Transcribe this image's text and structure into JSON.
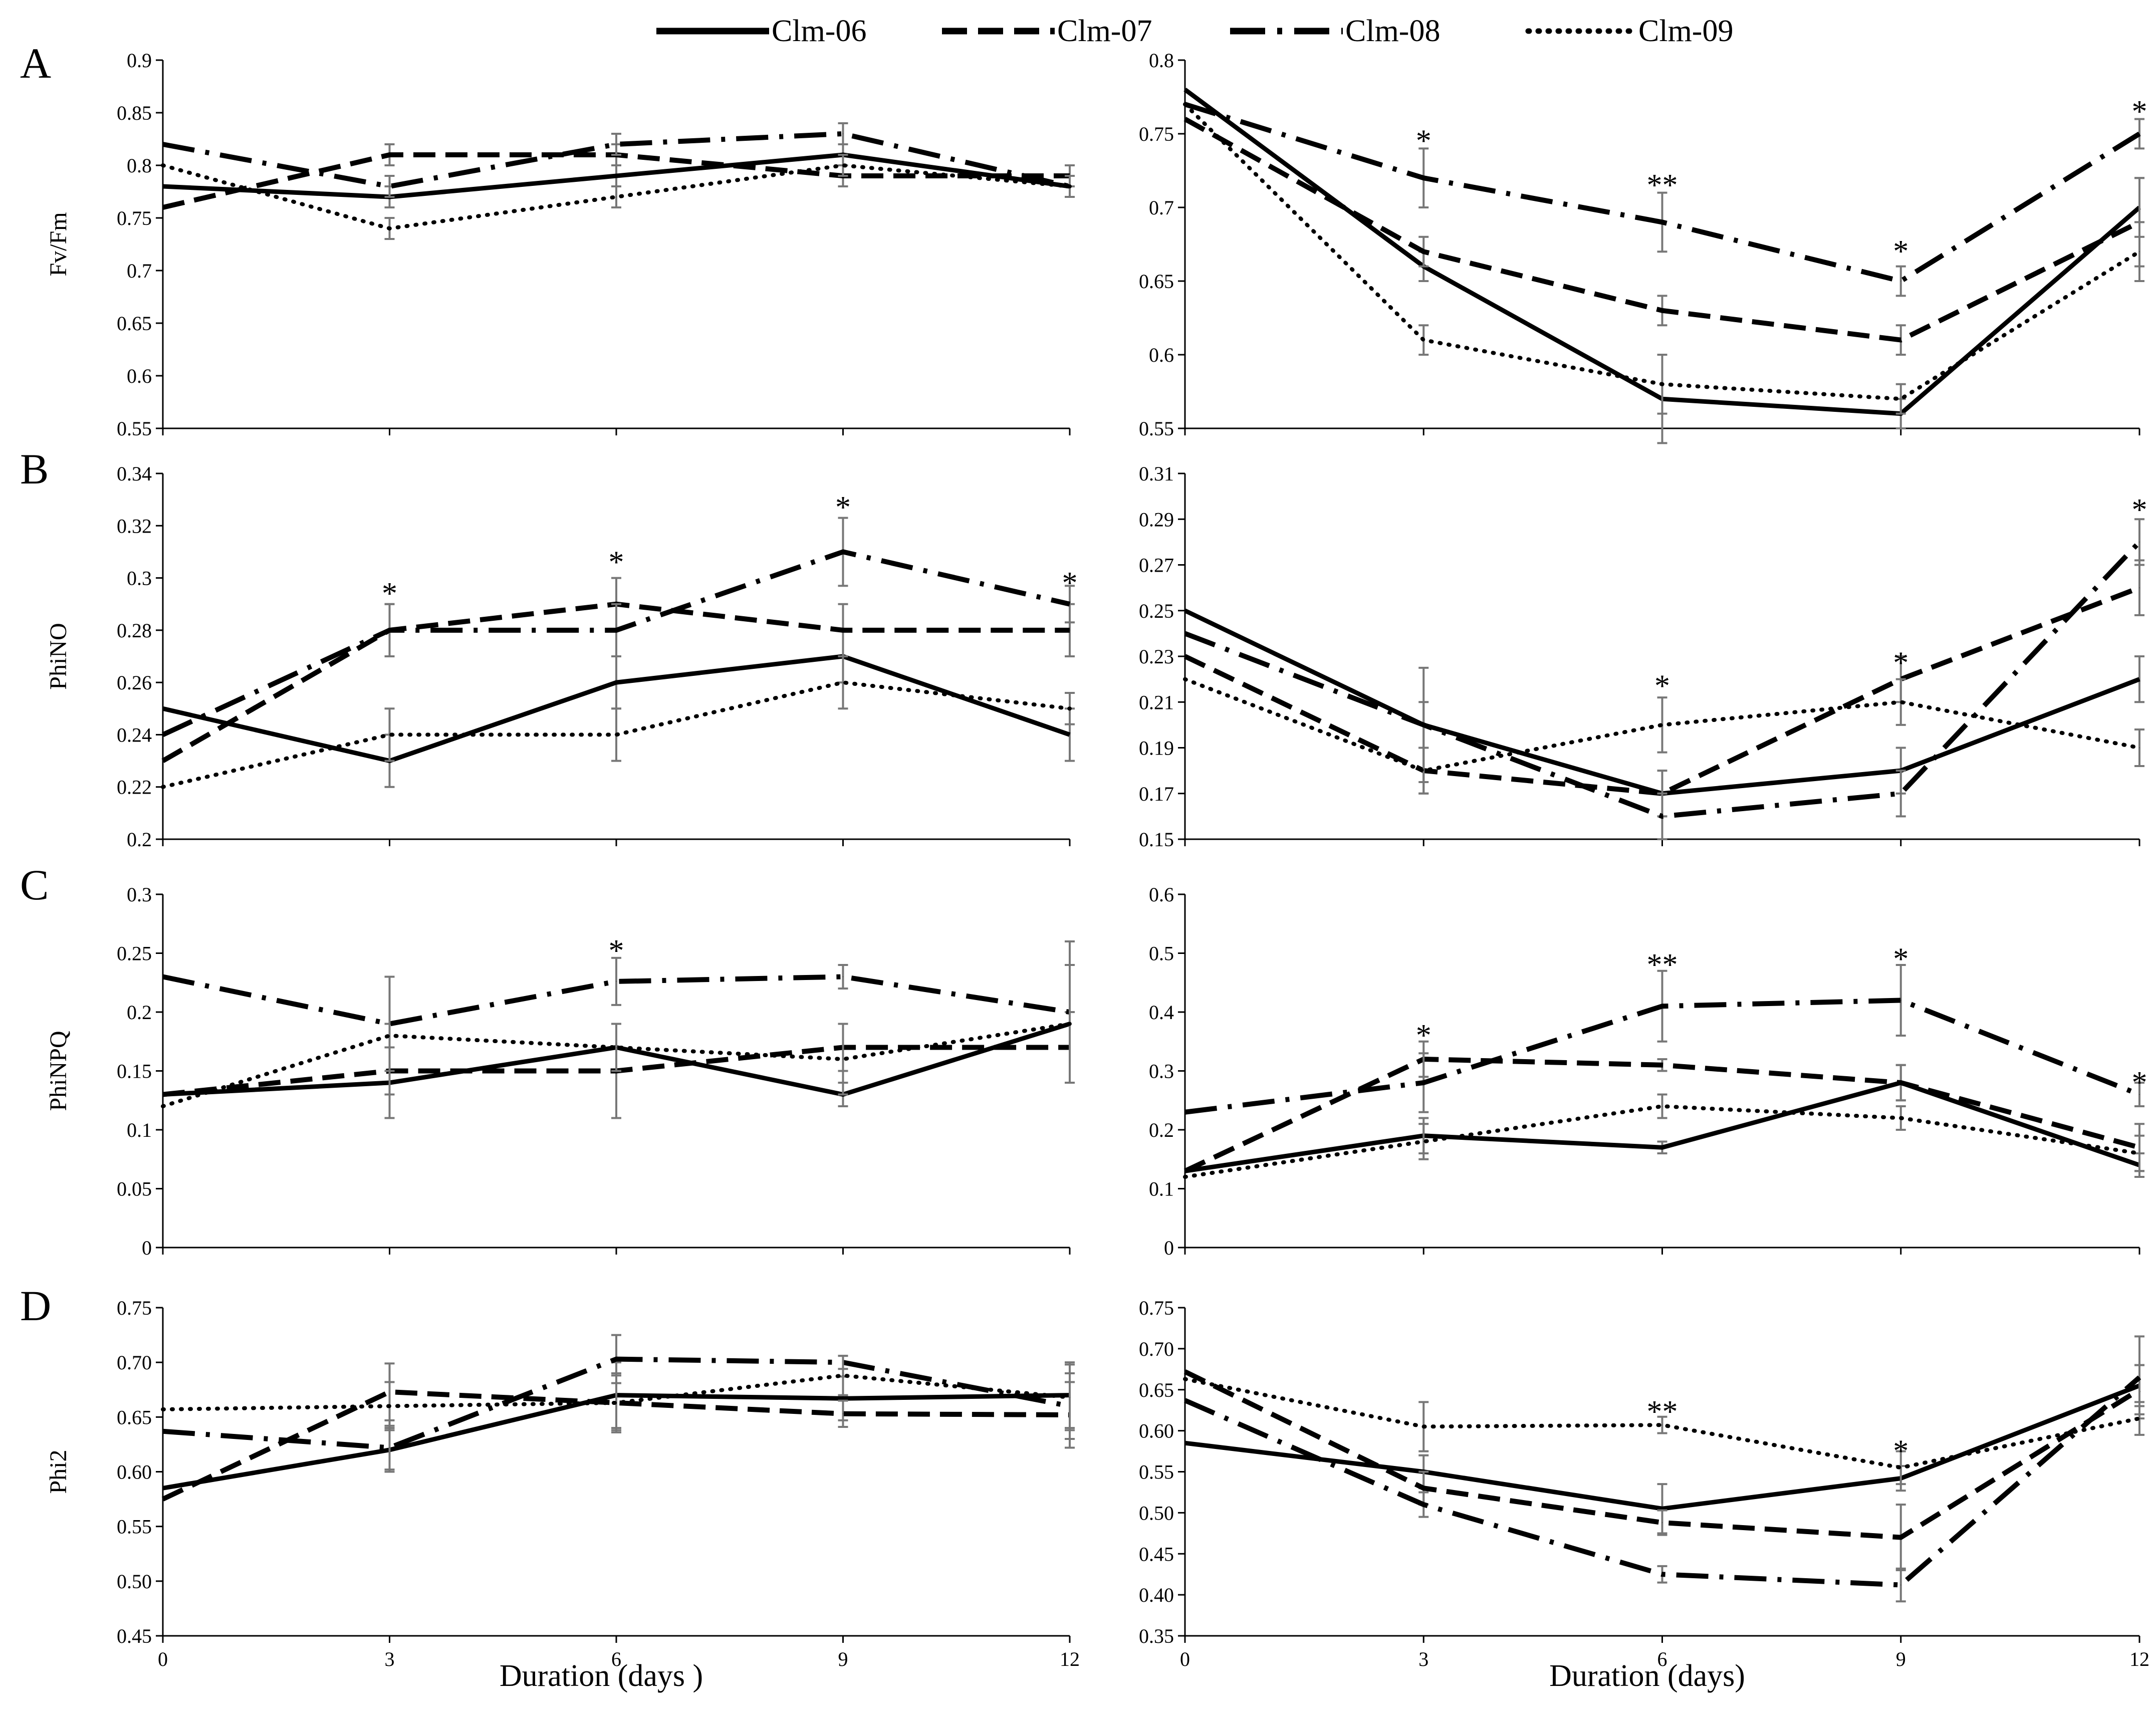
{
  "legend": [
    {
      "label": "Clm-06",
      "style": "solid"
    },
    {
      "label": "Clm-07",
      "style": "dashed"
    },
    {
      "label": "Clm-08",
      "style": "dashdot"
    },
    {
      "label": "Clm-09",
      "style": "dotted"
    }
  ],
  "panel_letters": [
    "A",
    "B",
    "C",
    "D"
  ],
  "chart_data": [
    {
      "id": "A-left",
      "type": "line",
      "ylabel": "Fv/Fm",
      "xlabel": "",
      "x": [
        0,
        3,
        6,
        9,
        12
      ],
      "xticks": [],
      "ylim": [
        0.55,
        0.9
      ],
      "yticks": [
        "0.55",
        "0.6",
        "0.65",
        "0.7",
        "0.75",
        "0.8",
        "0.85",
        "0.9"
      ],
      "series": [
        {
          "name": "Clm-06",
          "values": [
            0.78,
            0.77,
            0.79,
            0.81,
            0.78
          ],
          "err": [
            0,
            0.01,
            0.01,
            0.01,
            0.01
          ]
        },
        {
          "name": "Clm-07",
          "values": [
            0.76,
            0.81,
            0.81,
            0.79,
            0.79
          ],
          "err": [
            0,
            0.01,
            0.01,
            0.01,
            0.01
          ]
        },
        {
          "name": "Clm-08",
          "values": [
            0.82,
            0.78,
            0.82,
            0.83,
            0.78
          ],
          "err": [
            0,
            0.01,
            0.01,
            0.01,
            0.01
          ]
        },
        {
          "name": "Clm-09",
          "values": [
            0.8,
            0.74,
            0.77,
            0.8,
            0.78
          ],
          "err": [
            0,
            0.01,
            0.01,
            0.01,
            0.01
          ]
        }
      ],
      "annotations": []
    },
    {
      "id": "A-right",
      "type": "line",
      "ylabel": "",
      "xlabel": "",
      "x": [
        0,
        3,
        6,
        9,
        12
      ],
      "xticks": [],
      "ylim": [
        0.55,
        0.8
      ],
      "yticks": [
        "0.55",
        "0.6",
        "0.65",
        "0.7",
        "0.75",
        "0.8"
      ],
      "series": [
        {
          "name": "Clm-06",
          "values": [
            0.78,
            0.66,
            0.57,
            0.56,
            0.7
          ],
          "err": [
            0,
            0.01,
            0.03,
            0.01,
            0.02
          ]
        },
        {
          "name": "Clm-07",
          "values": [
            0.76,
            0.67,
            0.63,
            0.61,
            0.69
          ],
          "err": [
            0,
            0.01,
            0.01,
            0.01,
            0.03
          ]
        },
        {
          "name": "Clm-08",
          "values": [
            0.77,
            0.72,
            0.69,
            0.65,
            0.75
          ],
          "err": [
            0,
            0.02,
            0.02,
            0.01,
            0.01
          ]
        },
        {
          "name": "Clm-09",
          "values": [
            0.77,
            0.61,
            0.58,
            0.57,
            0.67
          ],
          "err": [
            0,
            0.01,
            0.02,
            0.01,
            0.02
          ]
        }
      ],
      "annotations": [
        {
          "text": "*",
          "x": 3,
          "y": 0.745
        },
        {
          "text": "**",
          "x": 6,
          "y": 0.715
        },
        {
          "text": "*",
          "x": 9,
          "y": 0.67
        },
        {
          "text": "*",
          "x": 12,
          "y": 0.765
        }
      ]
    },
    {
      "id": "B-left",
      "type": "line",
      "ylabel": "PhiNO",
      "xlabel": "",
      "x": [
        0,
        3,
        6,
        9,
        12
      ],
      "xticks": [],
      "ylim": [
        0.2,
        0.34
      ],
      "yticks": [
        "0.2",
        "0.22",
        "0.24",
        "0.26",
        "0.28",
        "0.3",
        "0.32",
        "0.34"
      ],
      "series": [
        {
          "name": "Clm-06",
          "values": [
            0.25,
            0.23,
            0.26,
            0.27,
            0.24
          ],
          "err": [
            0,
            0.01,
            0.01,
            0.01,
            0.01
          ]
        },
        {
          "name": "Clm-07",
          "values": [
            0.23,
            0.28,
            0.29,
            0.28,
            0.28
          ],
          "err": [
            0,
            0.01,
            0.01,
            0.01,
            0.01
          ]
        },
        {
          "name": "Clm-08",
          "values": [
            0.24,
            0.28,
            0.28,
            0.31,
            0.29
          ],
          "err": [
            0,
            0.01,
            0.01,
            0.013,
            0.007
          ]
        },
        {
          "name": "Clm-09",
          "values": [
            0.22,
            0.24,
            0.24,
            0.26,
            0.25
          ],
          "err": [
            0,
            0.01,
            0.01,
            0.01,
            0.006
          ]
        }
      ],
      "annotations": [
        {
          "text": "*",
          "x": 3,
          "y": 0.294
        },
        {
          "text": "*",
          "x": 6,
          "y": 0.306
        },
        {
          "text": "*",
          "x": 9,
          "y": 0.327
        },
        {
          "text": "*",
          "x": 12,
          "y": 0.298
        }
      ]
    },
    {
      "id": "B-right",
      "type": "line",
      "ylabel": "",
      "xlabel": "",
      "x": [
        0,
        3,
        6,
        9,
        12
      ],
      "xticks": [],
      "ylim": [
        0.15,
        0.31
      ],
      "yticks": [
        "0.15",
        "0.17",
        "0.19",
        "0.21",
        "0.23",
        "0.25",
        "0.27",
        "0.29",
        "0.31"
      ],
      "series": [
        {
          "name": "Clm-06",
          "values": [
            0.25,
            0.2,
            0.17,
            0.18,
            0.22
          ],
          "err": [
            0,
            0.025,
            0.01,
            0.01,
            0.01
          ]
        },
        {
          "name": "Clm-07",
          "values": [
            0.23,
            0.18,
            0.17,
            0.22,
            0.26
          ],
          "err": [
            0,
            0.01,
            0.01,
            0.01,
            0.012
          ]
        },
        {
          "name": "Clm-08",
          "values": [
            0.24,
            0.2,
            0.16,
            0.17,
            0.28
          ],
          "err": [
            0,
            0.01,
            0.01,
            0.01,
            0.01
          ]
        },
        {
          "name": "Clm-09",
          "values": [
            0.22,
            0.18,
            0.2,
            0.21,
            0.19
          ],
          "err": [
            0,
            0.01,
            0.012,
            0.01,
            0.008
          ]
        }
      ],
      "annotations": [
        {
          "text": "*",
          "x": 6,
          "y": 0.217
        },
        {
          "text": "*",
          "x": 9,
          "y": 0.227
        },
        {
          "text": "*",
          "x": 12,
          "y": 0.294
        }
      ]
    },
    {
      "id": "C-left",
      "type": "line",
      "ylabel": "PhiNPQ",
      "xlabel": "",
      "x": [
        0,
        3,
        6,
        9,
        12
      ],
      "xticks": [],
      "ylim": [
        0,
        0.3
      ],
      "yticks": [
        "0",
        "0.05",
        "0.1",
        "0.15",
        "0.2",
        "0.25",
        "0.3"
      ],
      "series": [
        {
          "name": "Clm-06",
          "values": [
            0.13,
            0.14,
            0.17,
            0.13,
            0.19
          ],
          "err": [
            0,
            0.03,
            0.02,
            0.01,
            0.05
          ]
        },
        {
          "name": "Clm-07",
          "values": [
            0.13,
            0.15,
            0.15,
            0.17,
            0.17
          ],
          "err": [
            0,
            0.04,
            0.04,
            0.02,
            0.03
          ]
        },
        {
          "name": "Clm-08",
          "values": [
            0.23,
            0.19,
            0.226,
            0.23,
            0.2
          ],
          "err": [
            0,
            0.04,
            0.02,
            0.01,
            0.06
          ]
        },
        {
          "name": "Clm-09",
          "values": [
            0.12,
            0.18,
            0.17,
            0.16,
            0.19
          ],
          "err": [
            0,
            0.05,
            0.02,
            0.03,
            0.05
          ]
        }
      ],
      "annotations": [
        {
          "text": "*",
          "x": 6,
          "y": 0.252
        }
      ]
    },
    {
      "id": "C-right",
      "type": "line",
      "ylabel": "",
      "xlabel": "",
      "x": [
        0,
        3,
        6,
        9,
        12
      ],
      "xticks": [],
      "ylim": [
        0,
        0.6
      ],
      "yticks": [
        "0",
        "0.1",
        "0.2",
        "0.3",
        "0.4",
        "0.5",
        "0.6"
      ],
      "series": [
        {
          "name": "Clm-06",
          "values": [
            0.13,
            0.19,
            0.17,
            0.28,
            0.14
          ],
          "err": [
            0,
            0.03,
            0.01,
            0.03,
            0.02
          ]
        },
        {
          "name": "Clm-07",
          "values": [
            0.13,
            0.32,
            0.31,
            0.28,
            0.17
          ],
          "err": [
            0,
            0.03,
            0.01,
            0.03,
            0.04
          ]
        },
        {
          "name": "Clm-08",
          "values": [
            0.23,
            0.28,
            0.41,
            0.42,
            0.26
          ],
          "err": [
            0,
            0.05,
            0.06,
            0.06,
            0.02
          ]
        },
        {
          "name": "Clm-09",
          "values": [
            0.12,
            0.18,
            0.24,
            0.22,
            0.16
          ],
          "err": [
            0,
            0.03,
            0.02,
            0.02,
            0.03
          ]
        }
      ],
      "annotations": [
        {
          "text": "*",
          "x": 3,
          "y": 0.36
        },
        {
          "text": "**",
          "x": 6,
          "y": 0.48
        },
        {
          "text": "*",
          "x": 9,
          "y": 0.49
        },
        {
          "text": "*",
          "x": 12,
          "y": 0.28
        }
      ]
    },
    {
      "id": "D-left",
      "type": "line",
      "ylabel": "Phi2",
      "xlabel": "Duration (days )",
      "x": [
        0,
        3,
        6,
        9,
        12
      ],
      "xticks": [
        "0",
        "3",
        "6",
        "9",
        "12"
      ],
      "ylim": [
        0.45,
        0.75
      ],
      "yticks": [
        "0.45",
        "0.50",
        "0.55",
        "0.60",
        "0.65",
        "0.70",
        "0.75"
      ],
      "series": [
        {
          "name": "Clm-06",
          "values": [
            0.585,
            0.62,
            0.67,
            0.667,
            0.67
          ],
          "err": [
            0,
            0.02,
            0.03,
            0.02,
            0.03
          ]
        },
        {
          "name": "Clm-07",
          "values": [
            0.575,
            0.673,
            0.663,
            0.653,
            0.652
          ],
          "err": [
            0,
            0.026,
            0.025,
            0.012,
            0.03
          ]
        },
        {
          "name": "Clm-08",
          "values": [
            0.637,
            0.622,
            0.703,
            0.7,
            0.66
          ],
          "err": [
            0,
            0.02,
            0.022,
            0.006,
            0.03
          ]
        },
        {
          "name": "Clm-09",
          "values": [
            0.657,
            0.66,
            0.663,
            0.688,
            0.668
          ],
          "err": [
            0,
            0.022,
            0.027,
            0.018,
            0.03
          ]
        }
      ],
      "annotations": []
    },
    {
      "id": "D-right",
      "type": "line",
      "ylabel": "",
      "xlabel": "Duration (days)",
      "x": [
        0,
        3,
        6,
        9,
        12
      ],
      "xticks": [
        "0",
        "3",
        "6",
        "9",
        "12"
      ],
      "ylim": [
        0.35,
        0.75
      ],
      "yticks": [
        "0.35",
        "0.40",
        "0.45",
        "0.50",
        "0.55",
        "0.60",
        "0.65",
        "0.70",
        "0.75"
      ],
      "series": [
        {
          "name": "Clm-06",
          "values": [
            0.585,
            0.55,
            0.505,
            0.542,
            0.655
          ],
          "err": [
            0,
            0.02,
            0.03,
            0.015,
            0.025
          ]
        },
        {
          "name": "Clm-07",
          "values": [
            0.672,
            0.53,
            0.488,
            0.47,
            0.65
          ],
          "err": [
            0,
            0.02,
            0.015,
            0.04,
            0.03
          ]
        },
        {
          "name": "Clm-08",
          "values": [
            0.637,
            0.51,
            0.425,
            0.412,
            0.665
          ],
          "err": [
            0,
            0.015,
            0.01,
            0.02,
            0.05
          ]
        },
        {
          "name": "Clm-09",
          "values": [
            0.663,
            0.605,
            0.607,
            0.555,
            0.615
          ],
          "err": [
            0,
            0.03,
            0.01,
            0.02,
            0.02
          ]
        }
      ],
      "annotations": [
        {
          "text": "**",
          "x": 6,
          "y": 0.623
        },
        {
          "text": "*",
          "x": 9,
          "y": 0.575
        }
      ]
    }
  ]
}
